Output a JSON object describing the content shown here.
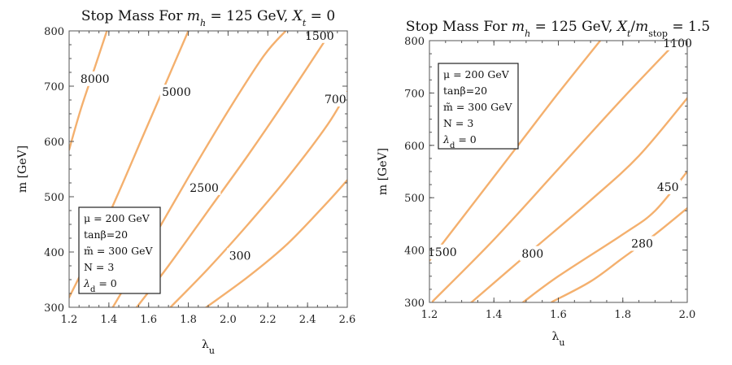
{
  "chart_data": [
    {
      "type": "contour",
      "title": "Stop Mass For m_h = 125 GeV, X_t = 0",
      "title_parts": [
        "Stop Mass For ",
        "m",
        "h",
        " = 125 GeV, ",
        "X",
        "t",
        " = 0"
      ],
      "xlabel": "λ_u",
      "ylabel": "m [GeV]",
      "xlim": [
        1.2,
        2.6
      ],
      "ylim": [
        300,
        800
      ],
      "xticks": [
        1.2,
        1.4,
        1.6,
        1.8,
        2.0,
        2.2,
        2.4,
        2.6
      ],
      "xtick_labels": [
        "1.2",
        "1.4",
        "1.6",
        "1.8",
        "2.0",
        "2.2",
        "2.4",
        "2.6"
      ],
      "yticks": [
        300,
        400,
        500,
        600,
        700,
        800
      ],
      "ytick_labels": [
        "300",
        "400",
        "500",
        "600",
        "700",
        "800"
      ],
      "legend_lines": [
        "μ = 200 GeV",
        "tanβ=20",
        "m̃ = 300 GeV",
        "N = 3",
        "λ_d = 0"
      ],
      "legend_position": "bottom-left",
      "contours": [
        {
          "level": "8000",
          "points": [
            [
              1.2,
              585
            ],
            [
              1.26,
              660
            ],
            [
              1.33,
              735
            ],
            [
              1.39,
              800
            ]
          ],
          "label_at": [
            1.33,
            712
          ]
        },
        {
          "level": "5000",
          "points": [
            [
              1.2,
              318
            ],
            [
              1.32,
              405
            ],
            [
              1.44,
              500
            ],
            [
              1.56,
              600
            ],
            [
              1.68,
              700
            ],
            [
              1.8,
              800
            ]
          ],
          "label_at": [
            1.74,
            688
          ]
        },
        {
          "level": "2500",
          "points": [
            [
              1.42,
              300
            ],
            [
              1.6,
              410
            ],
            [
              1.8,
              535
            ],
            [
              2.0,
              655
            ],
            [
              2.18,
              755
            ],
            [
              2.29,
              800
            ]
          ],
          "label_at": [
            1.88,
            515
          ]
        },
        {
          "level": "1500",
          "points": [
            [
              1.54,
              300
            ],
            [
              1.7,
              375
            ],
            [
              1.9,
              475
            ],
            [
              2.1,
              575
            ],
            [
              2.3,
              680
            ],
            [
              2.52,
              800
            ]
          ],
          "label_at": [
            2.46,
            790
          ]
        },
        {
          "level": "700",
          "points": [
            [
              1.71,
              300
            ],
            [
              1.9,
              370
            ],
            [
              2.1,
              450
            ],
            [
              2.3,
              535
            ],
            [
              2.5,
              630
            ],
            [
              2.6,
              690
            ]
          ],
          "label_at": [
            2.54,
            675
          ]
        },
        {
          "level": "300",
          "points": [
            [
              1.89,
              300
            ],
            [
              2.1,
              355
            ],
            [
              2.3,
              415
            ],
            [
              2.5,
              490
            ],
            [
              2.6,
              530
            ]
          ],
          "label_at": [
            2.06,
            392
          ]
        }
      ]
    },
    {
      "type": "contour",
      "title": "Stop Mass For m_h = 125 GeV, X_t/m_stop = 1.5",
      "title_parts": [
        "Stop Mass For ",
        "m",
        "h",
        " = 125 GeV, ",
        "X",
        "t",
        "/",
        "m",
        "stop",
        " = 1.5"
      ],
      "xlabel": "λ_u",
      "ylabel": "m [GeV]",
      "xlim": [
        1.2,
        2.0
      ],
      "ylim": [
        300,
        800
      ],
      "xticks": [
        1.2,
        1.4,
        1.6,
        1.8,
        2.0
      ],
      "xtick_labels": [
        "1.2",
        "1.4",
        "1.6",
        "1.8",
        "2.0"
      ],
      "yticks": [
        300,
        400,
        500,
        600,
        700,
        800
      ],
      "ytick_labels": [
        "300",
        "400",
        "500",
        "600",
        "700",
        "800"
      ],
      "legend_lines": [
        "μ = 200 GeV",
        "tanβ=20",
        "m̃ = 300 GeV",
        "N = 3",
        "λ_d = 0"
      ],
      "legend_position": "top-left",
      "contours": [
        {
          "level": "1500",
          "points": [
            [
              1.2,
              380
            ],
            [
              1.3,
              460
            ],
            [
              1.4,
              540
            ],
            [
              1.5,
              620
            ],
            [
              1.6,
              700
            ],
            [
              1.73,
              800
            ]
          ],
          "label_at": [
            1.24,
            395
          ]
        },
        {
          "level": "1100",
          "points": [
            [
              1.21,
              302
            ],
            [
              1.4,
              420
            ],
            [
              1.6,
              555
            ],
            [
              1.8,
              690
            ],
            [
              1.97,
              800
            ]
          ],
          "label_at": [
            1.97,
            794
          ]
        },
        {
          "level": "800",
          "points": [
            [
              1.33,
              300
            ],
            [
              1.5,
              390
            ],
            [
              1.7,
              495
            ],
            [
              1.85,
              580
            ],
            [
              2.0,
              690
            ]
          ],
          "label_at": [
            1.52,
            392
          ]
        },
        {
          "level": "450",
          "points": [
            [
              1.49,
              300
            ],
            [
              1.6,
              350
            ],
            [
              1.8,
              430
            ],
            [
              1.9,
              475
            ],
            [
              2.0,
              550
            ]
          ],
          "label_at": [
            1.94,
            519
          ]
        },
        {
          "level": "280",
          "points": [
            [
              1.58,
              301
            ],
            [
              1.7,
              340
            ],
            [
              1.8,
              385
            ],
            [
              1.9,
              430
            ],
            [
              2.0,
              480
            ]
          ],
          "label_at": [
            1.86,
            411
          ]
        }
      ]
    }
  ]
}
